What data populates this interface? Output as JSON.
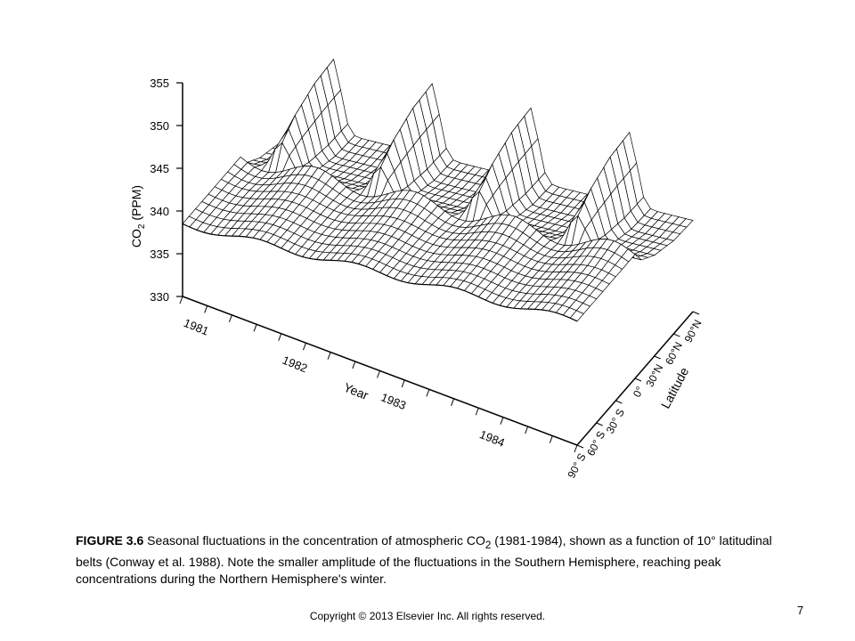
{
  "chart_data": {
    "type": "surface",
    "zlabel": "CO2 (PPM)",
    "zlabel_main": "CO",
    "zlabel_sub": "2",
    "zlabel_rest": " (PPM)",
    "z_ticks": [
      "355",
      "350",
      "345",
      "340",
      "335",
      "330"
    ],
    "z_range": [
      330,
      355
    ],
    "xlabel": "Year",
    "x_ticks": [
      "1981",
      "1982",
      "1983",
      "1984"
    ],
    "x_range": [
      1981,
      1985
    ],
    "ylabel": "Latitude",
    "y_ticks": [
      "90° S",
      "60° S",
      "30° S",
      "0°",
      "30°N",
      "60°N",
      "90°N"
    ],
    "y_values": [
      -90,
      -60,
      -30,
      0,
      30,
      60,
      90
    ],
    "surface": {
      "baseline_ppm_1981": 338.5,
      "annual_growth_ppm": 1.5,
      "seasonal_amplitude_ppm_by_latitude": [
        0.8,
        0.8,
        1.0,
        2.0,
        6.0,
        8.0,
        8.5
      ]
    }
  },
  "caption": {
    "label": "FIGURE 3.6",
    "text_before": " Seasonal fluctuations in the concentration of atmospheric CO",
    "sub": "2",
    "text_after": " (1981-1984), shown as a function of 10° latitudinal belts (Conway et al. 1988). Note the smaller amplitude of the fluctuations in the Southern Hemisphere, reaching peak concentrations during the Northern Hemisphere's winter."
  },
  "footer": {
    "copyright": "Copyright © 2013 Elsevier Inc. All rights reserved.",
    "page_number": "7"
  }
}
